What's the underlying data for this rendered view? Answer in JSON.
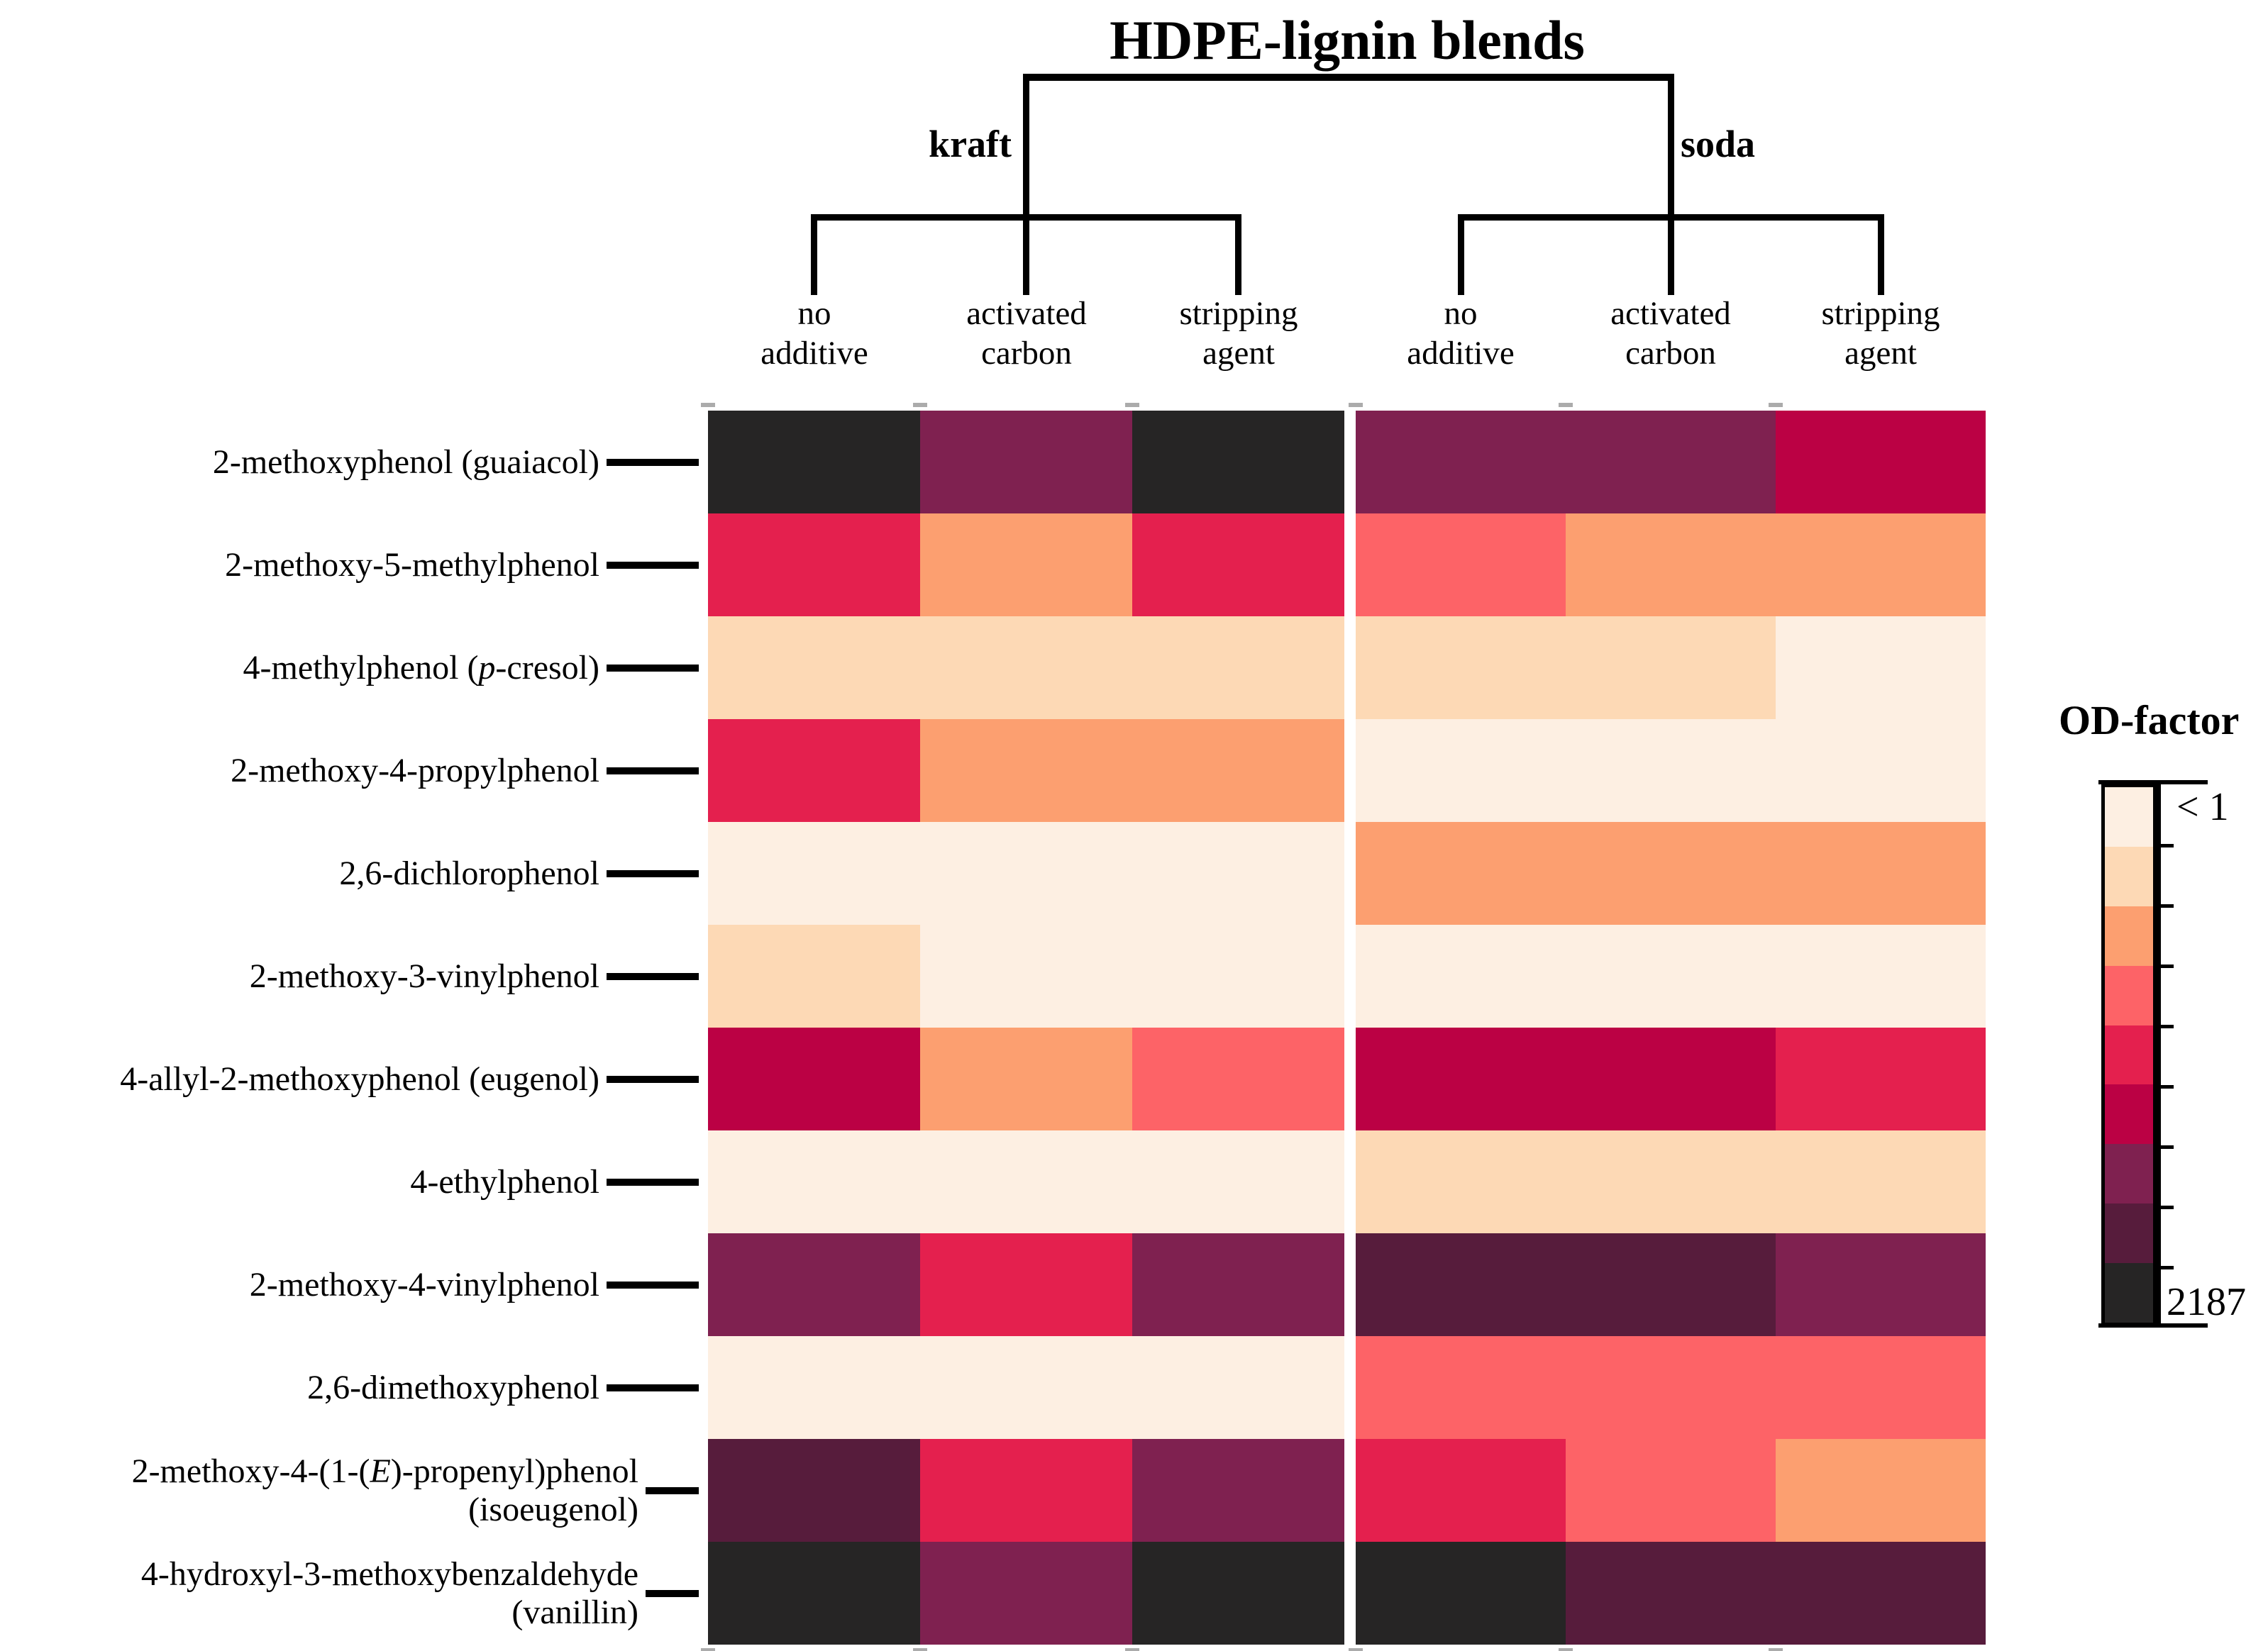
{
  "title": "HDPE-lignin blends",
  "tree": {
    "groups": [
      {
        "label": "kraft",
        "treatments": [
          "no additive",
          "activated carbon",
          "stripping agent"
        ]
      },
      {
        "label": "soda",
        "treatments": [
          "no additive",
          "activated carbon",
          "stripping agent"
        ]
      }
    ]
  },
  "legend": {
    "title": "OD-factor",
    "min_label": "< 1",
    "max_label": "2187",
    "bin_count": 9,
    "palette_top_to_bottom": [
      "#FDEFE2",
      "#FDD9B5",
      "#FC9F70",
      "#FD6367",
      "#E4204E",
      "#BB0144",
      "#7F2150",
      "#571C3C",
      "#262525"
    ]
  },
  "chart_data": {
    "type": "heatmap",
    "title": "HDPE-lignin blends",
    "column_groups": [
      {
        "name": "kraft",
        "columns": [
          "no additive",
          "activated carbon",
          "stripping agent"
        ]
      },
      {
        "name": "soda",
        "columns": [
          "no additive",
          "activated carbon",
          "stripping agent"
        ]
      }
    ],
    "rows": [
      {
        "label_lines": [
          "2-methoxyphenol (guaiacol)"
        ]
      },
      {
        "label_lines": [
          "2-methoxy-5-methylphenol"
        ]
      },
      {
        "label_lines": [
          "4-methylphenol (*p*-cresol)"
        ]
      },
      {
        "label_lines": [
          "2-methoxy-4-propylphenol"
        ]
      },
      {
        "label_lines": [
          "2,6-dichlorophenol"
        ]
      },
      {
        "label_lines": [
          "2-methoxy-3-vinylphenol"
        ]
      },
      {
        "label_lines": [
          "4-allyl-2-methoxyphenol (eugenol)"
        ]
      },
      {
        "label_lines": [
          "4-ethylphenol"
        ]
      },
      {
        "label_lines": [
          "2-methoxy-4-vinylphenol"
        ]
      },
      {
        "label_lines": [
          "2,6-dimethoxyphenol"
        ]
      },
      {
        "label_lines": [
          "2-methoxy-4-(1-(*E*)-propenyl)phenol",
          "(isoeugenol)"
        ]
      },
      {
        "label_lines": [
          "4-hydroxyl-3-methoxybenzaldehyde",
          "(vanillin)"
        ]
      }
    ],
    "value_legend": {
      "scale_title": "OD-factor",
      "bin_1": "< 1",
      "bin_9": "2187"
    },
    "values_od_bin_1to9": [
      [
        9,
        7,
        9,
        7,
        7,
        6
      ],
      [
        5,
        3,
        5,
        4,
        3,
        3
      ],
      [
        2,
        2,
        2,
        2,
        2,
        1
      ],
      [
        5,
        3,
        3,
        1,
        1,
        1
      ],
      [
        1,
        1,
        1,
        3,
        3,
        3
      ],
      [
        2,
        1,
        1,
        1,
        1,
        1
      ],
      [
        6,
        3,
        4,
        6,
        6,
        5
      ],
      [
        1,
        1,
        1,
        2,
        2,
        2
      ],
      [
        7,
        5,
        7,
        8,
        8,
        7
      ],
      [
        1,
        1,
        1,
        4,
        4,
        4
      ],
      [
        8,
        5,
        7,
        5,
        4,
        3
      ],
      [
        9,
        7,
        9,
        9,
        8,
        8
      ]
    ]
  }
}
